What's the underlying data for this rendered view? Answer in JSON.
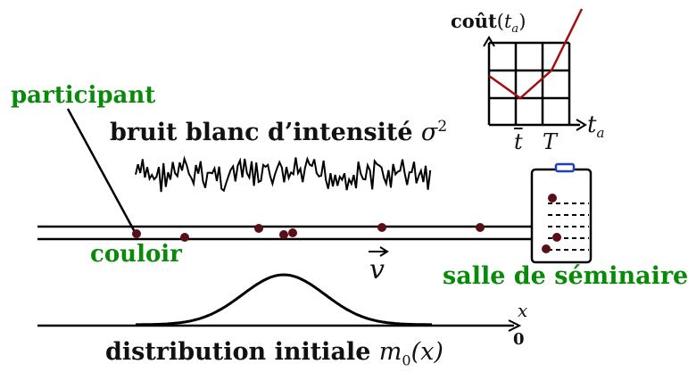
{
  "labels": {
    "participant": "participant",
    "noise_prefix": "bruit blanc d’intensité ",
    "noise_symbol": "σ",
    "noise_exponent": "2",
    "corridor": "couloir",
    "velocity_symbol": "v",
    "room": "salle de séminaire",
    "distribution_prefix": "distribution initiale ",
    "distribution_symbol": "m",
    "distribution_subscript": "0",
    "distribution_arg": "(x)",
    "axis_x": "x",
    "axis_origin": "0"
  },
  "cost_plot": {
    "title_word": "coût",
    "title_arg_open": "(",
    "title_var": "t",
    "title_sub": "a",
    "title_arg_close": ")",
    "xlabel_var": "t",
    "xlabel_sub": "a",
    "tick_tbar": "t",
    "tick_T": "T"
  },
  "colors": {
    "label_green": "#0a8a0a",
    "cost_curve": "#a01010",
    "participant_dot": "#5a0f18",
    "board_marker": "#1f3fbf"
  },
  "icons": {
    "room_board": "whiteboard-icon",
    "noise": "white-noise-signal"
  }
}
